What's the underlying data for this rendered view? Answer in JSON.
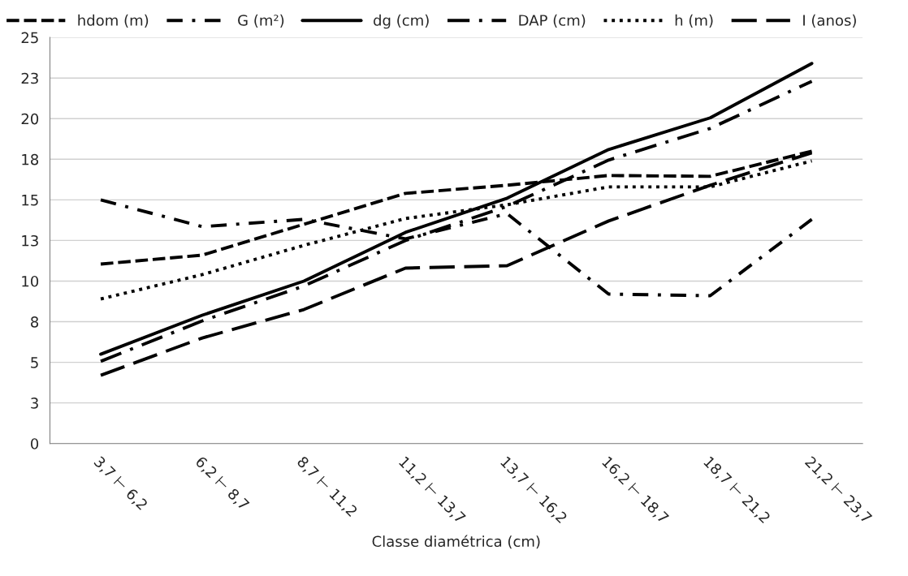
{
  "chart_data": {
    "type": "line",
    "xlabel": "Classe diamétrica (cm)",
    "categories": [
      "3,7 ⊢ 6,2",
      "6,2 ⊢ 8,7",
      "8,7 ⊢ 11,2",
      "11,2 ⊢ 13,7",
      "13,7 ⊢ 16,2",
      "16,2 ⊢ 18,7",
      "18,7 ⊢ 21,2",
      "21,2 ⊢ 23,7"
    ],
    "series": [
      {
        "name": "hdom (m)",
        "color": "#000000",
        "line_style": "dashed",
        "values": [
          11.05,
          11.6,
          13.5,
          15.4,
          15.9,
          16.5,
          16.45,
          18.0
        ]
      },
      {
        "name": "G (m²)",
        "color": "#000000",
        "line_style": "dashdot",
        "values": [
          15.0,
          13.35,
          13.8,
          12.6,
          14.15,
          9.2,
          9.1,
          13.8
        ]
      },
      {
        "name": "dg (cm)",
        "color": "#000000",
        "line_style": "solid",
        "values": [
          5.5,
          7.9,
          10.0,
          13.0,
          15.1,
          18.1,
          20.05,
          23.4
        ]
      },
      {
        "name": "DAP (cm)",
        "color": "#000000",
        "line_style": "longdashdot",
        "values": [
          5.06,
          7.55,
          9.7,
          12.5,
          14.6,
          17.45,
          19.4,
          22.3
        ]
      },
      {
        "name": "h (m)",
        "color": "#000000",
        "line_style": "dotted",
        "values": [
          8.9,
          10.4,
          12.2,
          13.85,
          14.7,
          15.8,
          15.8,
          17.4
        ]
      },
      {
        "name": "I (anos)",
        "color": "#000000",
        "line_style": "longdash",
        "values": [
          4.2,
          6.5,
          8.25,
          10.8,
          10.95,
          13.7,
          15.9,
          17.9
        ]
      }
    ],
    "ylim": [
      0,
      25
    ],
    "yticks": [
      0,
      {
        "value": 2.5,
        "label": "3"
      },
      5,
      {
        "value": 7.5,
        "label": "8"
      },
      10,
      {
        "value": 12.5,
        "label": "13"
      },
      15,
      {
        "value": 17.5,
        "label": "18"
      },
      20,
      {
        "value": 22.5,
        "label": "23"
      },
      25
    ],
    "grid": "y",
    "legend": "top",
    "marker": "none"
  }
}
